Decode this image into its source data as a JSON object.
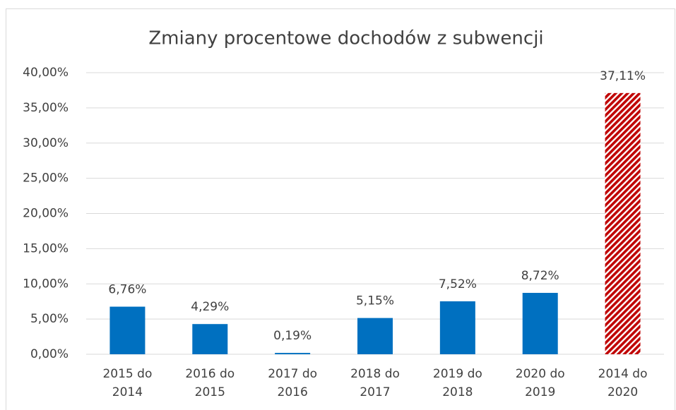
{
  "chart_data": {
    "type": "bar",
    "title": "Zmiany procentowe dochodów z subwencji",
    "categories": [
      "2015 do 2014",
      "2016 do 2015",
      "2017 do 2016",
      "2018 do 2017",
      "2019 do 2018",
      "2020 do 2019",
      "2014 do 2020"
    ],
    "values": [
      6.76,
      4.29,
      0.19,
      5.15,
      7.52,
      8.72,
      37.11
    ],
    "value_labels": [
      "6,76%",
      "4,29%",
      "0,19%",
      "5,15%",
      "7,52%",
      "8,72%",
      "37,11%"
    ],
    "colors": [
      "#0070c0",
      "#0070c0",
      "#0070c0",
      "#0070c0",
      "#0070c0",
      "#0070c0",
      "#c00000"
    ],
    "patterns": [
      null,
      null,
      null,
      null,
      null,
      null,
      "diagonal"
    ],
    "ylim": [
      0,
      40
    ],
    "yticks": [
      {
        "value": 0,
        "label": "0,00%"
      },
      {
        "value": 5,
        "label": "5,00%"
      },
      {
        "value": 10,
        "label": "10,00%"
      },
      {
        "value": 15,
        "label": "15,00%"
      },
      {
        "value": 20,
        "label": "20,00%"
      },
      {
        "value": 25,
        "label": "25,00%"
      },
      {
        "value": 30,
        "label": "30,00%"
      },
      {
        "value": 35,
        "label": "35,00%"
      },
      {
        "value": 40,
        "label": "40,00%"
      }
    ],
    "grid": true
  }
}
